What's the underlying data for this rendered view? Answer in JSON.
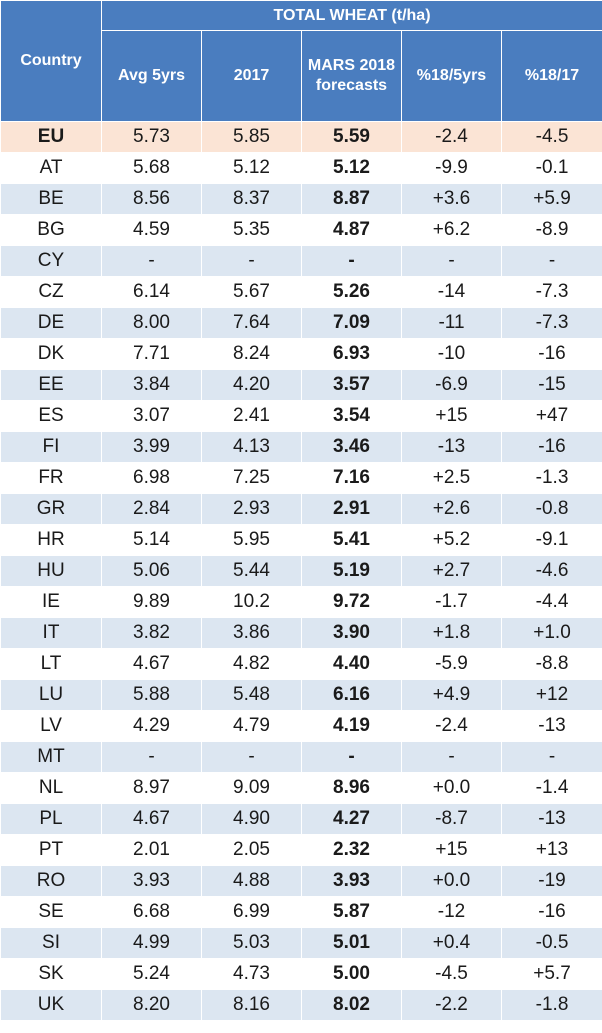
{
  "chart_data": {
    "type": "table",
    "title": "TOTAL WHEAT (t/ha)",
    "columns": [
      "Country",
      "Avg 5yrs",
      "2017",
      "MARS 2018 forecasts",
      "%18/5yrs",
      "%18/17"
    ],
    "rows": [
      {
        "country": "EU",
        "avg5": "5.73",
        "y2017": "5.85",
        "mars2018": "5.59",
        "pct5": "-2.4",
        "pct17": "-4.5"
      },
      {
        "country": "AT",
        "avg5": "5.68",
        "y2017": "5.12",
        "mars2018": "5.12",
        "pct5": "-9.9",
        "pct17": "-0.1"
      },
      {
        "country": "BE",
        "avg5": "8.56",
        "y2017": "8.37",
        "mars2018": "8.87",
        "pct5": "+3.6",
        "pct17": "+5.9"
      },
      {
        "country": "BG",
        "avg5": "4.59",
        "y2017": "5.35",
        "mars2018": "4.87",
        "pct5": "+6.2",
        "pct17": "-8.9"
      },
      {
        "country": "CY",
        "avg5": "-",
        "y2017": "-",
        "mars2018": "-",
        "pct5": "-",
        "pct17": "-"
      },
      {
        "country": "CZ",
        "avg5": "6.14",
        "y2017": "5.67",
        "mars2018": "5.26",
        "pct5": "-14",
        "pct17": "-7.3"
      },
      {
        "country": "DE",
        "avg5": "8.00",
        "y2017": "7.64",
        "mars2018": "7.09",
        "pct5": "-11",
        "pct17": "-7.3"
      },
      {
        "country": "DK",
        "avg5": "7.71",
        "y2017": "8.24",
        "mars2018": "6.93",
        "pct5": "-10",
        "pct17": "-16"
      },
      {
        "country": "EE",
        "avg5": "3.84",
        "y2017": "4.20",
        "mars2018": "3.57",
        "pct5": "-6.9",
        "pct17": "-15"
      },
      {
        "country": "ES",
        "avg5": "3.07",
        "y2017": "2.41",
        "mars2018": "3.54",
        "pct5": "+15",
        "pct17": "+47"
      },
      {
        "country": "FI",
        "avg5": "3.99",
        "y2017": "4.13",
        "mars2018": "3.46",
        "pct5": "-13",
        "pct17": "-16"
      },
      {
        "country": "FR",
        "avg5": "6.98",
        "y2017": "7.25",
        "mars2018": "7.16",
        "pct5": "+2.5",
        "pct17": "-1.3"
      },
      {
        "country": "GR",
        "avg5": "2.84",
        "y2017": "2.93",
        "mars2018": "2.91",
        "pct5": "+2.6",
        "pct17": "-0.8"
      },
      {
        "country": "HR",
        "avg5": "5.14",
        "y2017": "5.95",
        "mars2018": "5.41",
        "pct5": "+5.2",
        "pct17": "-9.1"
      },
      {
        "country": "HU",
        "avg5": "5.06",
        "y2017": "5.44",
        "mars2018": "5.19",
        "pct5": "+2.7",
        "pct17": "-4.6"
      },
      {
        "country": "IE",
        "avg5": "9.89",
        "y2017": "10.2",
        "mars2018": "9.72",
        "pct5": "-1.7",
        "pct17": "-4.4"
      },
      {
        "country": "IT",
        "avg5": "3.82",
        "y2017": "3.86",
        "mars2018": "3.90",
        "pct5": "+1.8",
        "pct17": "+1.0"
      },
      {
        "country": "LT",
        "avg5": "4.67",
        "y2017": "4.82",
        "mars2018": "4.40",
        "pct5": "-5.9",
        "pct17": "-8.8"
      },
      {
        "country": "LU",
        "avg5": "5.88",
        "y2017": "5.48",
        "mars2018": "6.16",
        "pct5": "+4.9",
        "pct17": "+12"
      },
      {
        "country": "LV",
        "avg5": "4.29",
        "y2017": "4.79",
        "mars2018": "4.19",
        "pct5": "-2.4",
        "pct17": "-13"
      },
      {
        "country": "MT",
        "avg5": "-",
        "y2017": "-",
        "mars2018": "-",
        "pct5": "-",
        "pct17": "-"
      },
      {
        "country": "NL",
        "avg5": "8.97",
        "y2017": "9.09",
        "mars2018": "8.96",
        "pct5": "+0.0",
        "pct17": "-1.4"
      },
      {
        "country": "PL",
        "avg5": "4.67",
        "y2017": "4.90",
        "mars2018": "4.27",
        "pct5": "-8.7",
        "pct17": "-13"
      },
      {
        "country": "PT",
        "avg5": "2.01",
        "y2017": "2.05",
        "mars2018": "2.32",
        "pct5": "+15",
        "pct17": "+13"
      },
      {
        "country": "RO",
        "avg5": "3.93",
        "y2017": "4.88",
        "mars2018": "3.93",
        "pct5": "+0.0",
        "pct17": "-19"
      },
      {
        "country": "SE",
        "avg5": "6.68",
        "y2017": "6.99",
        "mars2018": "5.87",
        "pct5": "-12",
        "pct17": "-16"
      },
      {
        "country": "SI",
        "avg5": "4.99",
        "y2017": "5.03",
        "mars2018": "5.01",
        "pct5": "+0.4",
        "pct17": "-0.5"
      },
      {
        "country": "SK",
        "avg5": "5.24",
        "y2017": "4.73",
        "mars2018": "5.00",
        "pct5": "-4.5",
        "pct17": "+5.7"
      },
      {
        "country": "UK",
        "avg5": "8.20",
        "y2017": "8.16",
        "mars2018": "8.02",
        "pct5": "-2.2",
        "pct17": "-1.8"
      }
    ],
    "colors": {
      "header_bg": "#4a7dbf",
      "row_band": "#dce6f1",
      "eu_row": "#fbe4d5",
      "negative": "#e00000",
      "positive": "#1a1ad6"
    }
  }
}
